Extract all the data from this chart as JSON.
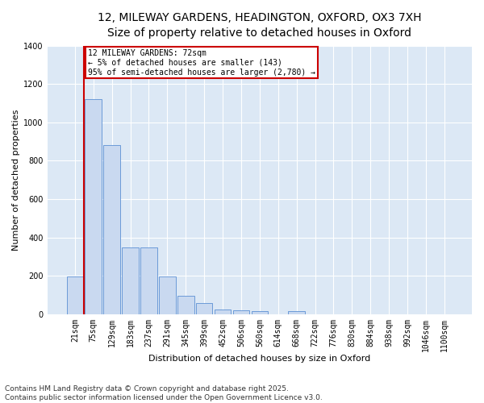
{
  "title_line1": "12, MILEWAY GARDENS, HEADINGTON, OXFORD, OX3 7XH",
  "title_line2": "Size of property relative to detached houses in Oxford",
  "xlabel": "Distribution of detached houses by size in Oxford",
  "ylabel": "Number of detached properties",
  "bar_color": "#c9d9f0",
  "bar_edge_color": "#5b8fd4",
  "vline_color": "#cc0000",
  "vline_x": 0.5,
  "annotation_text": "12 MILEWAY GARDENS: 72sqm\n← 5% of detached houses are smaller (143)\n95% of semi-detached houses are larger (2,780) →",
  "annotation_box_color": "#cc0000",
  "categories": [
    "21sqm",
    "75sqm",
    "129sqm",
    "183sqm",
    "237sqm",
    "291sqm",
    "345sqm",
    "399sqm",
    "452sqm",
    "506sqm",
    "560sqm",
    "614sqm",
    "668sqm",
    "722sqm",
    "776sqm",
    "830sqm",
    "884sqm",
    "938sqm",
    "992sqm",
    "1046sqm",
    "1100sqm"
  ],
  "values": [
    195,
    1120,
    880,
    350,
    350,
    195,
    95,
    60,
    25,
    20,
    15,
    0,
    15,
    0,
    0,
    0,
    0,
    0,
    0,
    0,
    0
  ],
  "ylim": [
    0,
    1400
  ],
  "yticks": [
    0,
    200,
    400,
    600,
    800,
    1000,
    1200,
    1400
  ],
  "background_color": "#dce8f5",
  "footer_text": "Contains HM Land Registry data © Crown copyright and database right 2025.\nContains public sector information licensed under the Open Government Licence v3.0.",
  "title_fontsize": 10,
  "subtitle_fontsize": 9,
  "axis_label_fontsize": 8,
  "tick_fontsize": 7,
  "footer_fontsize": 6.5
}
